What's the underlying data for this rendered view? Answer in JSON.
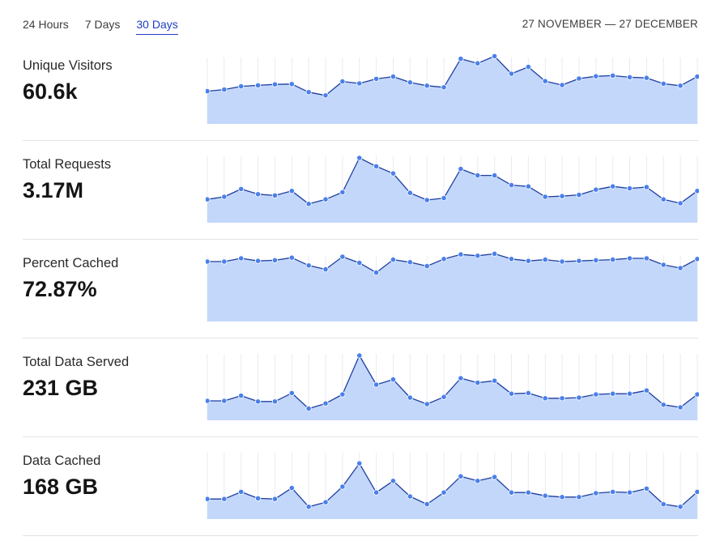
{
  "range_tabs": [
    {
      "label": "24 Hours",
      "active": false
    },
    {
      "label": "7 Days",
      "active": false
    },
    {
      "label": "30 Days",
      "active": true
    }
  ],
  "date_range": "27 NOVEMBER — 27 DECEMBER",
  "colors": {
    "line": "#1f3f9f",
    "point": "#4a80ea",
    "fill": "#c3d7fb",
    "grid": "#e8ebf3",
    "active_tab": "#1f3fbf"
  },
  "chart_data": [
    {
      "type": "area",
      "title": "Unique Visitors",
      "value": "60.6k",
      "values": [
        0.505,
        0.53,
        0.58,
        0.595,
        0.61,
        0.615,
        0.49,
        0.44,
        0.655,
        0.625,
        0.695,
        0.73,
        0.64,
        0.59,
        0.565,
        1.005,
        0.935,
        1.045,
        0.775,
        0.88,
        0.66,
        0.6,
        0.7,
        0.735,
        0.745,
        0.72,
        0.71,
        0.62,
        0.59,
        0.73
      ]
    },
    {
      "type": "area",
      "title": "Total Requests",
      "value": "3.17M",
      "values": [
        0.36,
        0.4,
        0.52,
        0.44,
        0.42,
        0.49,
        0.29,
        0.36,
        0.47,
        1.0,
        0.87,
        0.76,
        0.46,
        0.35,
        0.38,
        0.83,
        0.73,
        0.73,
        0.58,
        0.56,
        0.4,
        0.41,
        0.43,
        0.51,
        0.56,
        0.53,
        0.55,
        0.36,
        0.3,
        0.49
      ]
    },
    {
      "type": "area",
      "title": "Percent Cached",
      "value": "72.87%",
      "values": [
        0.925,
        0.925,
        0.975,
        0.935,
        0.945,
        0.985,
        0.865,
        0.805,
        1.0,
        0.905,
        0.755,
        0.955,
        0.915,
        0.855,
        0.965,
        1.035,
        1.015,
        1.045,
        0.965,
        0.935,
        0.955,
        0.925,
        0.935,
        0.945,
        0.955,
        0.975,
        0.975,
        0.875,
        0.825,
        0.965
      ]
    },
    {
      "type": "area",
      "title": "Total Data Served",
      "value": "231 GB",
      "values": [
        0.3,
        0.3,
        0.38,
        0.29,
        0.29,
        0.42,
        0.18,
        0.26,
        0.4,
        1.0,
        0.55,
        0.63,
        0.35,
        0.25,
        0.36,
        0.65,
        0.58,
        0.61,
        0.41,
        0.42,
        0.34,
        0.34,
        0.35,
        0.4,
        0.41,
        0.41,
        0.46,
        0.24,
        0.2,
        0.4
      ]
    },
    {
      "type": "area",
      "title": "Data Cached",
      "value": "168 GB",
      "values": [
        0.31,
        0.31,
        0.42,
        0.32,
        0.31,
        0.48,
        0.19,
        0.26,
        0.5,
        0.86,
        0.41,
        0.59,
        0.35,
        0.23,
        0.41,
        0.66,
        0.59,
        0.65,
        0.41,
        0.41,
        0.36,
        0.34,
        0.34,
        0.4,
        0.42,
        0.41,
        0.47,
        0.23,
        0.19,
        0.42
      ]
    }
  ]
}
